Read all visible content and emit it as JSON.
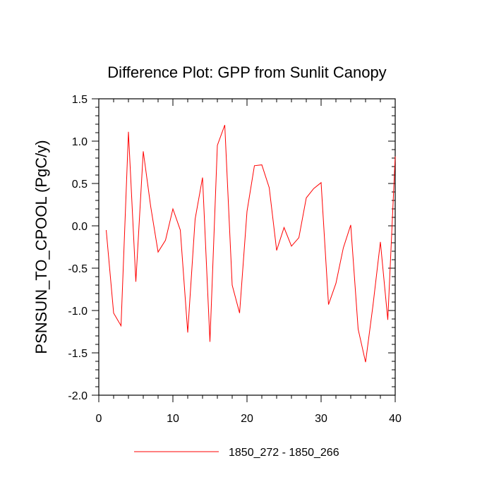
{
  "chart_data": {
    "type": "line",
    "title": "Difference Plot: GPP from Sunlit Canopy",
    "xlabel": "",
    "ylabel": "PSNSUN_TO_CPOOL  (PgC/y)",
    "xlim": [
      0,
      40
    ],
    "ylim": [
      -2.0,
      1.5
    ],
    "x_ticks": [
      0,
      10,
      20,
      30,
      40
    ],
    "y_ticks": [
      -2.0,
      -1.5,
      -1.0,
      -0.5,
      0.0,
      0.5,
      1.0,
      1.5
    ],
    "x_tick_labels": [
      "0",
      "10",
      "20",
      "30",
      "40"
    ],
    "y_tick_labels": [
      "-2.0",
      "-1.5",
      "-1.0",
      "-0.5",
      "0.0",
      "0.5",
      "1.0",
      "1.5"
    ],
    "grid": false,
    "legend_position": "bottom",
    "series": [
      {
        "name": "1850_272 - 1850_266",
        "color": "#ff0000",
        "x": [
          1,
          2,
          3,
          4,
          5,
          6,
          7,
          8,
          9,
          10,
          11,
          12,
          13,
          14,
          15,
          16,
          17,
          18,
          19,
          20,
          21,
          22,
          23,
          24,
          25,
          26,
          27,
          28,
          29,
          30,
          31,
          32,
          33,
          34,
          35,
          36,
          37,
          38,
          39,
          40
        ],
        "values": [
          -0.05,
          -1.03,
          -1.18,
          1.11,
          -0.66,
          0.88,
          0.23,
          -0.31,
          -0.17,
          0.2,
          -0.05,
          -1.26,
          0.08,
          0.57,
          -1.37,
          0.95,
          1.19,
          -0.7,
          -1.03,
          0.17,
          0.71,
          0.72,
          0.45,
          -0.29,
          -0.02,
          -0.24,
          -0.14,
          0.33,
          0.44,
          0.51,
          -0.93,
          -0.68,
          -0.26,
          0.01,
          -1.22,
          -1.61,
          -0.94,
          -0.19,
          -1.11,
          0.82
        ]
      }
    ]
  }
}
